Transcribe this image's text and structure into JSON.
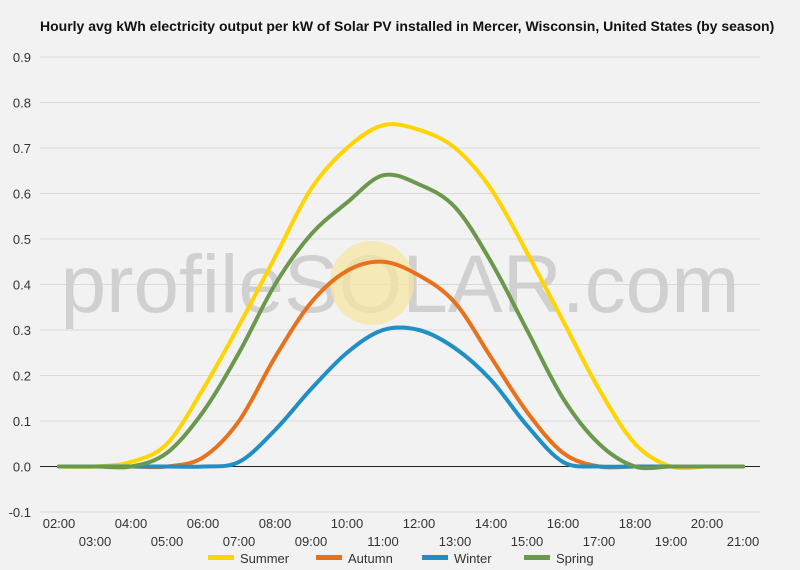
{
  "chart_data": {
    "type": "line",
    "title": "Hourly avg kWh electricity output per kW of Solar PV installed in Mercer, Wisconsin, United States (by season)",
    "xlabel": "",
    "ylabel": "",
    "ylim": [
      -0.1,
      0.9
    ],
    "yticks": [
      "-0.1",
      "0.0",
      "0.1",
      "0.2",
      "0.3",
      "0.4",
      "0.5",
      "0.6",
      "0.7",
      "0.8",
      "0.9"
    ],
    "xticks_upper": [
      "02:00",
      "04:00",
      "06:00",
      "08:00",
      "10:00",
      "12:00",
      "14:00",
      "16:00",
      "18:00",
      "20:00"
    ],
    "xticks_lower": [
      "03:00",
      "05:00",
      "07:00",
      "09:00",
      "11:00",
      "13:00",
      "15:00",
      "17:00",
      "19:00",
      "21:00"
    ],
    "x": [
      2,
      3,
      4,
      5,
      6,
      7,
      8,
      9,
      10,
      11,
      12,
      13,
      14,
      15,
      16,
      17,
      18,
      19,
      20,
      21
    ],
    "grid": true,
    "legend_position": "bottom",
    "watermark": "profileSOLAR.com",
    "series": [
      {
        "name": "Summer",
        "color": "#ffd400",
        "values": [
          0,
          0,
          0.01,
          0.05,
          0.17,
          0.31,
          0.46,
          0.61,
          0.7,
          0.75,
          0.74,
          0.7,
          0.61,
          0.47,
          0.32,
          0.17,
          0.05,
          0,
          0,
          0
        ]
      },
      {
        "name": "Autumn",
        "color": "#e8711c",
        "values": [
          0,
          0,
          0,
          0,
          0.02,
          0.1,
          0.24,
          0.36,
          0.43,
          0.45,
          0.42,
          0.36,
          0.24,
          0.12,
          0.03,
          0,
          0,
          0,
          0,
          0
        ]
      },
      {
        "name": "Winter",
        "color": "#1f8fc4",
        "values": [
          0,
          0,
          0,
          0,
          0,
          0.01,
          0.08,
          0.17,
          0.25,
          0.3,
          0.3,
          0.26,
          0.19,
          0.09,
          0.01,
          0,
          0,
          0,
          0,
          0
        ]
      },
      {
        "name": "Spring",
        "color": "#6a994e",
        "values": [
          0,
          0,
          0,
          0.03,
          0.12,
          0.25,
          0.4,
          0.51,
          0.58,
          0.64,
          0.62,
          0.57,
          0.45,
          0.3,
          0.15,
          0.05,
          0,
          0,
          0,
          0
        ]
      }
    ]
  }
}
